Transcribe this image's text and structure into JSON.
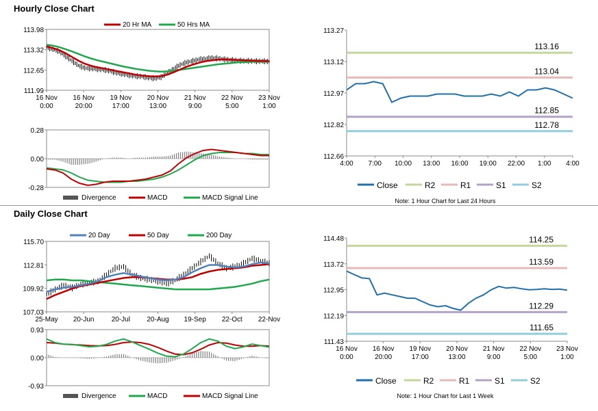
{
  "sections": {
    "hourly_title": "Hourly Close Chart",
    "daily_title": "Daily Close Chart"
  },
  "colors": {
    "ma_red": "#c00000",
    "ma_green": "#1ea84b",
    "ma_blue": "#4f81bd",
    "close_blue": "#1f6fad",
    "r2": "#c3d69b",
    "r1": "#e6b9b8",
    "s1": "#b3a2c7",
    "s2": "#93cddd",
    "bars": "#000000",
    "divergence": "#7f7f7f"
  },
  "chart_data": [
    {
      "id": "hourly_price",
      "type": "line",
      "title": "",
      "legend": [
        "20 Hr MA",
        "50 Hrs MA"
      ],
      "ylim": [
        111.99,
        113.98
      ],
      "y_ticks": [
        "113.98",
        "113.32",
        "112.65",
        "111.99"
      ],
      "x_ticks": [
        [
          "16 Nov",
          "0:00"
        ],
        [
          "16 Nov",
          "20:00"
        ],
        [
          "19 Nov",
          "17:00"
        ],
        [
          "20 Nov",
          "13:00"
        ],
        [
          "21 Nov",
          "9:00"
        ],
        [
          "22 Nov",
          "5:00"
        ],
        [
          "23 Nov",
          "1:00"
        ]
      ],
      "price": [
        113.4,
        113.33,
        113.26,
        113.1,
        112.95,
        112.8,
        112.72,
        112.7,
        112.68,
        112.66,
        112.62,
        112.56,
        112.52,
        112.48,
        112.45,
        112.44,
        112.4,
        112.38,
        112.42,
        112.55,
        112.7,
        112.82,
        112.9,
        112.95,
        113.0,
        113.02,
        113.05,
        113.03,
        113.0,
        112.98,
        112.96,
        112.95,
        112.95,
        112.94,
        112.94,
        112.93
      ],
      "ma20": [
        113.42,
        113.37,
        113.3,
        113.2,
        113.08,
        112.96,
        112.86,
        112.79,
        112.74,
        112.7,
        112.66,
        112.62,
        112.58,
        112.54,
        112.5,
        112.47,
        112.45,
        112.44,
        112.45,
        112.5,
        112.58,
        112.67,
        112.76,
        112.83,
        112.89,
        112.94,
        112.97,
        112.99,
        113.0,
        112.99,
        112.98,
        112.97,
        112.96,
        112.95,
        112.95,
        112.94
      ],
      "ma50": [
        113.48,
        113.45,
        113.4,
        113.33,
        113.26,
        113.18,
        113.1,
        113.03,
        112.97,
        112.92,
        112.87,
        112.82,
        112.77,
        112.73,
        112.69,
        112.66,
        112.63,
        112.61,
        112.6,
        112.61,
        112.63,
        112.66,
        112.69,
        112.72,
        112.75,
        112.78,
        112.81,
        112.84,
        112.86,
        112.88,
        112.9,
        112.91,
        112.92,
        112.93,
        112.93,
        112.94
      ]
    },
    {
      "id": "hourly_macd",
      "type": "line",
      "legend": [
        "Divergence",
        "MACD",
        "MACD Signal Line"
      ],
      "ylim": [
        -0.28,
        0.28
      ],
      "y_ticks": [
        "0.28",
        "0.00",
        "-0.28"
      ],
      "macd": [
        -0.1,
        -0.11,
        -0.14,
        -0.2,
        -0.24,
        -0.26,
        -0.25,
        -0.23,
        -0.22,
        -0.22,
        -0.22,
        -0.21,
        -0.2,
        -0.18,
        -0.16,
        -0.12,
        -0.05,
        0.01,
        0.05,
        0.08,
        0.09,
        0.08,
        0.07,
        0.06,
        0.05,
        0.04,
        0.03,
        0.03
      ],
      "signal": [
        -0.09,
        -0.1,
        -0.11,
        -0.14,
        -0.18,
        -0.21,
        -0.22,
        -0.23,
        -0.23,
        -0.23,
        -0.22,
        -0.22,
        -0.21,
        -0.2,
        -0.18,
        -0.15,
        -0.11,
        -0.06,
        -0.01,
        0.03,
        0.05,
        0.06,
        0.06,
        0.06,
        0.05,
        0.05,
        0.04,
        0.04
      ],
      "divergence": [
        -0.01,
        -0.01,
        -0.03,
        -0.06,
        -0.06,
        -0.05,
        -0.03,
        0.0,
        0.01,
        0.01,
        0.0,
        0.01,
        0.01,
        0.02,
        0.02,
        0.03,
        0.06,
        0.07,
        0.06,
        0.05,
        0.04,
        0.02,
        0.01,
        0.0,
        0.0,
        -0.01,
        -0.01,
        -0.01
      ]
    },
    {
      "id": "hourly_levels",
      "type": "line",
      "title": "",
      "ylim": [
        112.66,
        113.27
      ],
      "y_ticks": [
        "113.27",
        "113.12",
        "112.97",
        "112.82",
        "112.66"
      ],
      "x_ticks": [
        "4:00",
        "7:00",
        "10:00",
        "13:00",
        "16:00",
        "19:00",
        "22:00",
        "1:00",
        "4:00"
      ],
      "close": [
        112.98,
        113.01,
        113.01,
        113.02,
        113.01,
        112.92,
        112.94,
        112.95,
        112.95,
        112.95,
        112.96,
        112.96,
        112.96,
        112.95,
        112.95,
        112.95,
        112.96,
        112.95,
        112.97,
        112.95,
        112.98,
        112.98,
        112.99,
        112.98,
        112.96,
        112.94
      ],
      "levels": [
        {
          "name": "R2",
          "value": 113.16,
          "label": "113.16"
        },
        {
          "name": "R1",
          "value": 113.04,
          "label": "113.04"
        },
        {
          "name": "S1",
          "value": 112.85,
          "label": "112.85"
        },
        {
          "name": "S2",
          "value": 112.78,
          "label": "112.78"
        }
      ],
      "legend": [
        "Close",
        "R2",
        "R1",
        "S1",
        "S2"
      ],
      "note": "Note: 1 Hour Chart for Last 24 Hours"
    },
    {
      "id": "daily_price",
      "type": "line",
      "legend": [
        "20 Day",
        "50 Day",
        "200 Day"
      ],
      "ylim": [
        107.03,
        115.7
      ],
      "y_ticks": [
        "115.70",
        "112.81",
        "109.92",
        "107.03"
      ],
      "x_ticks": [
        "25-May",
        "20-Jun",
        "20-Jul",
        "20-Aug",
        "19-Sep",
        "22-Oct",
        "22-Nov"
      ],
      "price": [
        109.2,
        109.8,
        110.3,
        110.0,
        110.4,
        110.6,
        110.8,
        111.6,
        112.4,
        112.6,
        111.6,
        111.2,
        111.0,
        110.8,
        110.5,
        110.9,
        111.6,
        112.4,
        113.2,
        113.9,
        113.0,
        112.4,
        112.6,
        113.0,
        113.6,
        113.3,
        113.0
      ],
      "ma20": [
        109.5,
        109.8,
        110.0,
        110.1,
        110.3,
        110.5,
        110.8,
        111.3,
        111.6,
        111.8,
        111.6,
        111.4,
        111.2,
        111.0,
        110.9,
        111.0,
        111.3,
        111.9,
        112.4,
        112.8,
        112.8,
        112.6,
        112.5,
        112.6,
        112.9,
        113.1,
        113.0
      ],
      "ma50": [
        108.6,
        109.1,
        109.5,
        109.9,
        110.2,
        110.4,
        110.6,
        110.8,
        111.0,
        111.2,
        111.3,
        111.3,
        111.2,
        111.1,
        111.0,
        111.0,
        111.1,
        111.3,
        111.7,
        112.0,
        112.2,
        112.3,
        112.4,
        112.5,
        112.7,
        112.8,
        112.9
      ],
      "ma200": [
        110.9,
        111.0,
        111.0,
        110.9,
        110.9,
        110.8,
        110.7,
        110.6,
        110.5,
        110.4,
        110.3,
        110.2,
        110.1,
        110.0,
        109.9,
        109.8,
        109.8,
        109.8,
        109.8,
        109.8,
        109.9,
        110.0,
        110.1,
        110.3,
        110.5,
        110.8,
        111.0
      ]
    },
    {
      "id": "daily_macd",
      "type": "line",
      "legend": [
        "Divergence",
        "MACD",
        "MACD Signal Line"
      ],
      "ylim": [
        -0.93,
        0.93
      ],
      "y_ticks": [
        "0.93",
        "0.00",
        "-0.93"
      ],
      "macd": [
        0.62,
        0.5,
        0.45,
        0.44,
        0.4,
        0.36,
        0.38,
        0.44,
        0.55,
        0.62,
        0.52,
        0.4,
        0.28,
        0.15,
        0.05,
        0.03,
        0.12,
        0.3,
        0.5,
        0.62,
        0.55,
        0.38,
        0.3,
        0.36,
        0.45,
        0.4,
        0.35
      ],
      "signal": [
        0.5,
        0.48,
        0.45,
        0.43,
        0.42,
        0.4,
        0.39,
        0.4,
        0.44,
        0.5,
        0.52,
        0.5,
        0.44,
        0.34,
        0.22,
        0.12,
        0.1,
        0.16,
        0.28,
        0.42,
        0.5,
        0.48,
        0.42,
        0.38,
        0.38,
        0.4,
        0.38
      ],
      "divergence": [
        0.12,
        0.02,
        0.0,
        0.01,
        -0.02,
        -0.04,
        -0.01,
        0.04,
        0.11,
        0.12,
        0.0,
        -0.1,
        -0.16,
        -0.19,
        -0.17,
        -0.09,
        0.02,
        0.14,
        0.22,
        0.2,
        0.05,
        -0.1,
        -0.12,
        -0.02,
        0.07,
        0.0,
        -0.03
      ]
    },
    {
      "id": "daily_levels",
      "type": "line",
      "ylim": [
        111.43,
        114.48
      ],
      "y_ticks": [
        "114.48",
        "113.72",
        "112.95",
        "112.19",
        "111.43"
      ],
      "x_ticks": [
        [
          "16 Nov",
          "0:00"
        ],
        [
          "16 Nov",
          "20:00"
        ],
        [
          "19 Nov",
          "17:00"
        ],
        [
          "20 Nov",
          "13:00"
        ],
        [
          "21 Nov",
          "9:00"
        ],
        [
          "22 Nov",
          "5:00"
        ],
        [
          "23 Nov",
          "1:00"
        ]
      ],
      "close": [
        113.5,
        113.4,
        113.3,
        113.28,
        112.8,
        112.85,
        112.8,
        112.75,
        112.7,
        112.7,
        112.6,
        112.5,
        112.45,
        112.48,
        112.4,
        112.35,
        112.55,
        112.7,
        112.8,
        112.95,
        113.05,
        113.0,
        113.02,
        112.98,
        112.95,
        112.96,
        112.98,
        112.96,
        112.97,
        112.94
      ],
      "levels": [
        {
          "name": "R2",
          "value": 114.25,
          "label": "114.25"
        },
        {
          "name": "R1",
          "value": 113.59,
          "label": "113.59"
        },
        {
          "name": "S1",
          "value": 112.29,
          "label": "112.29"
        },
        {
          "name": "S2",
          "value": 111.65,
          "label": "111.65"
        }
      ],
      "legend": [
        "Close",
        "R2",
        "R1",
        "S1",
        "S2"
      ],
      "note": "Note: 1 Hour Chart for Last 1 Week"
    }
  ]
}
